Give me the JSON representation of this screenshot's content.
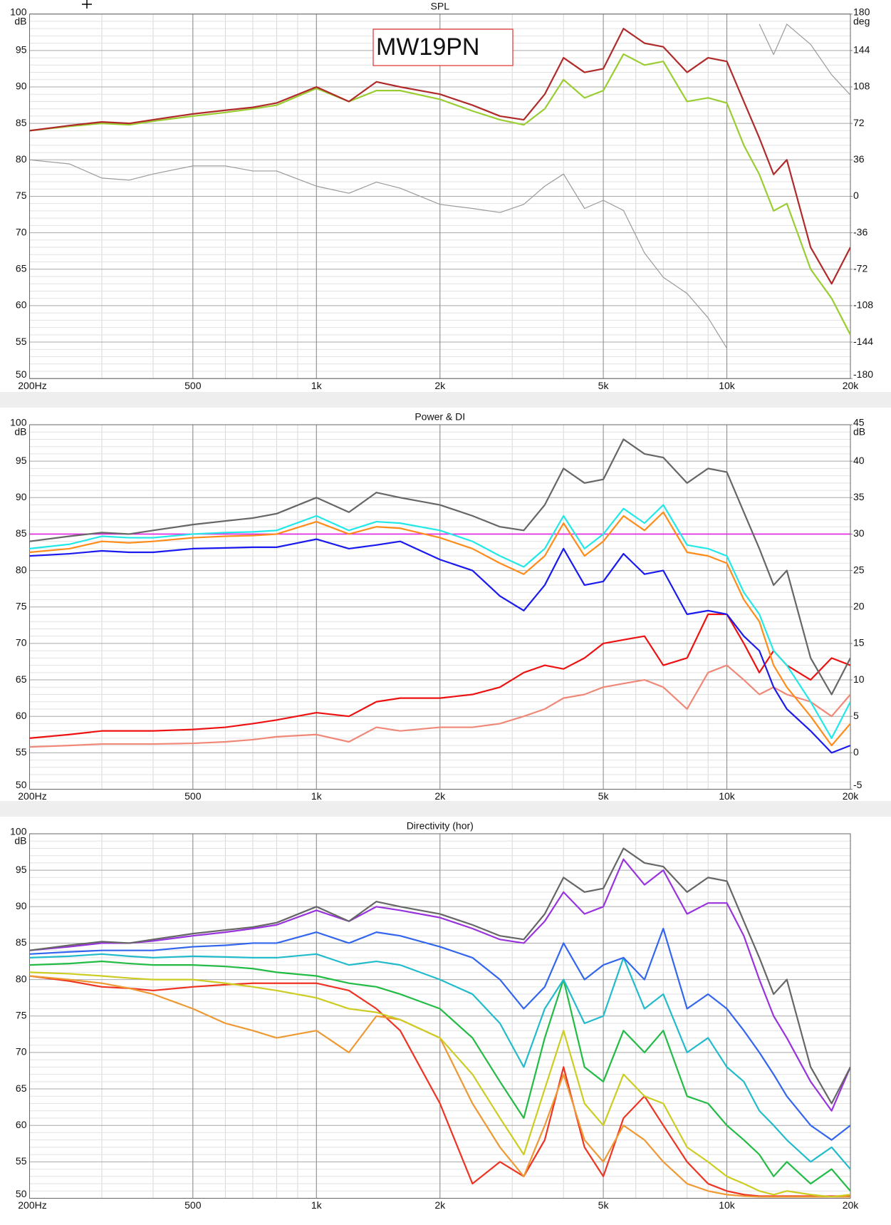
{
  "chart_data": [
    {
      "type": "line",
      "title": "SPL",
      "y_unit": "dB",
      "y2_unit": "deg",
      "annotation": "MW19PN",
      "xlog": true,
      "grid": true,
      "x": [
        200,
        250,
        300,
        350,
        400,
        500,
        600,
        700,
        800,
        1000,
        1200,
        1400,
        1600,
        2000,
        2400,
        2800,
        3200,
        3600,
        4000,
        4500,
        5000,
        5600,
        6300,
        7000,
        8000,
        9000,
        10000,
        11000,
        12000,
        13000,
        14000,
        16000,
        18000,
        20000
      ],
      "xlim": [
        200,
        20000
      ],
      "xticks": [
        {
          "value": 200,
          "label": "200Hz"
        },
        500,
        {
          "value": 1000,
          "label": "1k"
        },
        {
          "value": 2000,
          "label": "2k"
        },
        {
          "value": 5000,
          "label": "5k"
        },
        {
          "value": 10000,
          "label": "10k"
        },
        {
          "value": 20000,
          "label": "20k"
        }
      ],
      "ylim": [
        50,
        100
      ],
      "yticks": [
        100,
        95,
        90,
        85,
        80,
        75,
        70,
        65,
        60,
        55,
        50
      ],
      "y2lim": [
        -180,
        180
      ],
      "y2ticks": [
        180,
        144,
        108,
        72,
        36,
        0,
        -36,
        -72,
        -108,
        -144,
        -180
      ],
      "series": [
        {
          "color": "#9acd32",
          "values": [
            84,
            84.6,
            85,
            84.8,
            85.3,
            86,
            86.5,
            87,
            87.5,
            89.8,
            88,
            89.5,
            89.5,
            88.3,
            86.7,
            85.5,
            84.8,
            87,
            91,
            88.5,
            89.5,
            94.5,
            93,
            93.5,
            88,
            88.5,
            87.8,
            82,
            78,
            73,
            74,
            65,
            61,
            56
          ]
        },
        {
          "color": "#b02a2a",
          "values": [
            84,
            84.7,
            85.2,
            85,
            85.5,
            86.3,
            86.8,
            87.2,
            87.8,
            90,
            88,
            90.7,
            90,
            89,
            87.5,
            86,
            85.5,
            89,
            94,
            92,
            92.5,
            98,
            96,
            95.5,
            92,
            94,
            93.5,
            88,
            83,
            78,
            80,
            68,
            63,
            68
          ]
        },
        {
          "color": "#9a9a9a",
          "axis": "y2",
          "values": [
            36,
            32,
            18,
            16,
            22,
            30,
            30,
            25,
            25,
            10,
            3,
            14,
            8,
            -8,
            -12,
            -16,
            -8,
            10,
            22,
            -12,
            -4,
            -14,
            -56,
            -80,
            -96,
            -120,
            -150,
            null,
            170,
            140,
            170,
            150,
            120,
            100
          ]
        }
      ]
    },
    {
      "type": "line",
      "title": "Power & DI",
      "y_unit": "dB",
      "y2_unit": "dB",
      "xlog": true,
      "grid": true,
      "x": [
        200,
        250,
        300,
        350,
        400,
        500,
        600,
        700,
        800,
        1000,
        1200,
        1400,
        1600,
        2000,
        2400,
        2800,
        3200,
        3600,
        4000,
        4500,
        5000,
        5600,
        6300,
        7000,
        8000,
        9000,
        10000,
        11000,
        12000,
        13000,
        14000,
        16000,
        18000,
        20000
      ],
      "xlim": [
        200,
        20000
      ],
      "xticks": [
        {
          "value": 200,
          "label": "200Hz"
        },
        500,
        {
          "value": 1000,
          "label": "1k"
        },
        {
          "value": 2000,
          "label": "2k"
        },
        {
          "value": 5000,
          "label": "5k"
        },
        {
          "value": 10000,
          "label": "10k"
        },
        {
          "value": 20000,
          "label": "20k"
        }
      ],
      "ylim": [
        50,
        100
      ],
      "yticks": [
        100,
        95,
        90,
        85,
        80,
        75,
        70,
        65,
        60,
        55,
        50
      ],
      "y2lim": [
        -5,
        45
      ],
      "y2ticks": [
        45,
        40,
        35,
        30,
        25,
        20,
        15,
        10,
        5,
        0,
        -5
      ],
      "reference_line": {
        "value": 85,
        "color": "#e020e0"
      },
      "series": [
        {
          "color": "#f08878",
          "axis": "y2",
          "values": [
            0.8,
            1,
            1.2,
            1.2,
            1.2,
            1.3,
            1.5,
            1.8,
            2.2,
            2.5,
            1.5,
            3.5,
            3,
            3.5,
            3.5,
            4,
            5,
            6,
            7.5,
            8,
            9,
            9.5,
            10,
            9,
            6,
            11,
            12,
            10,
            8,
            9,
            8,
            7,
            5,
            8
          ]
        },
        {
          "color": "#ee1111",
          "axis": "y2",
          "values": [
            2,
            2.5,
            3,
            3,
            3,
            3.2,
            3.5,
            4,
            4.5,
            5.5,
            5,
            7,
            7.5,
            7.5,
            8,
            9,
            11,
            12,
            11.5,
            13,
            15,
            15.5,
            16,
            12,
            13,
            19,
            19,
            15,
            11,
            14,
            12,
            10,
            13,
            12
          ]
        },
        {
          "color": "#1a1aee",
          "values": [
            82,
            82.3,
            82.7,
            82.5,
            82.5,
            83,
            83.1,
            83.2,
            83.2,
            84.3,
            83,
            83.5,
            84,
            81.5,
            80,
            76.5,
            74.5,
            78,
            83,
            78,
            78.5,
            82.3,
            79.5,
            80,
            74,
            74.5,
            74,
            71,
            69,
            64,
            61,
            58,
            55,
            56
          ]
        },
        {
          "color": "#ff8c1a",
          "values": [
            82.5,
            83,
            84,
            83.8,
            84,
            84.5,
            84.7,
            84.8,
            85,
            86.7,
            85,
            86,
            85.8,
            84.5,
            83,
            81,
            79.5,
            82,
            86.5,
            82,
            84,
            87.5,
            85.5,
            88,
            82.5,
            82,
            81,
            76,
            73,
            67,
            64,
            60,
            56,
            59
          ]
        },
        {
          "color": "#22e8e8",
          "values": [
            83,
            83.6,
            84.7,
            84.5,
            84.5,
            85,
            85.2,
            85.3,
            85.5,
            87.5,
            85.5,
            86.7,
            86.5,
            85.5,
            84,
            82,
            80.5,
            83,
            87.5,
            83,
            85,
            88.5,
            86.5,
            89,
            83.5,
            83,
            82,
            77,
            74,
            69,
            67,
            62,
            57,
            62
          ]
        },
        {
          "color": "#666666",
          "values": [
            84,
            84.7,
            85.2,
            85,
            85.5,
            86.3,
            86.8,
            87.2,
            87.8,
            90,
            88,
            90.7,
            90,
            89,
            87.5,
            86,
            85.5,
            89,
            94,
            92,
            92.5,
            98,
            96,
            95.5,
            92,
            94,
            93.5,
            88,
            83,
            78,
            80,
            68,
            63,
            68
          ]
        }
      ]
    },
    {
      "type": "line",
      "title": "Directivity (hor)",
      "y_unit": "dB",
      "xlog": true,
      "grid": true,
      "x": [
        200,
        250,
        300,
        350,
        400,
        500,
        600,
        700,
        800,
        1000,
        1200,
        1400,
        1600,
        2000,
        2400,
        2800,
        3200,
        3600,
        4000,
        4500,
        5000,
        5600,
        6300,
        7000,
        8000,
        9000,
        10000,
        11000,
        12000,
        13000,
        14000,
        16000,
        18000,
        20000
      ],
      "xlim": [
        200,
        20000
      ],
      "xticks": [
        {
          "value": 200,
          "label": "200Hz"
        },
        500,
        {
          "value": 1000,
          "label": "1k"
        },
        {
          "value": 2000,
          "label": "2k"
        },
        {
          "value": 5000,
          "label": "5k"
        },
        {
          "value": 10000,
          "label": "10k"
        },
        {
          "value": 20000,
          "label": "20k"
        }
      ],
      "ylim": [
        50,
        100
      ],
      "yticks": [
        100,
        95,
        90,
        85,
        80,
        75,
        70,
        65,
        60,
        55,
        50
      ],
      "series": [
        {
          "color": "#ee3322",
          "values": [
            80.5,
            79.8,
            79,
            78.8,
            78.5,
            79,
            79.3,
            79.5,
            79.5,
            79.5,
            78.5,
            76,
            73,
            63,
            52,
            55,
            53,
            58,
            68,
            57,
            53,
            61,
            64,
            60,
            55,
            52,
            51,
            50.5,
            50.3,
            50.3,
            50.3,
            50.3,
            50.3,
            50.3
          ]
        },
        {
          "color": "#ee9933",
          "values": [
            80.5,
            80,
            79.5,
            78.8,
            78,
            76,
            74,
            73,
            72,
            73,
            70,
            75,
            74.5,
            72,
            63,
            57,
            53,
            60,
            67,
            58,
            55,
            60,
            58,
            55,
            52,
            51,
            50.5,
            50.3,
            50.2,
            50.2,
            50.2,
            50.2,
            50.2,
            50.2
          ]
        },
        {
          "color": "#cccc22",
          "values": [
            81,
            80.8,
            80.5,
            80.2,
            80,
            80,
            79.5,
            79,
            78.5,
            77.5,
            76,
            75.5,
            74.5,
            72,
            67,
            61,
            56,
            65,
            73,
            63,
            60,
            67,
            64,
            63,
            57,
            55,
            53,
            52,
            51,
            50.5,
            51,
            50.5,
            50.2,
            50.5
          ]
        },
        {
          "color": "#22bb44",
          "values": [
            82,
            82.2,
            82.5,
            82.2,
            82,
            82,
            81.8,
            81.5,
            81,
            80.5,
            79.5,
            79,
            78,
            76,
            72,
            66,
            61,
            72,
            80,
            68,
            66,
            73,
            70,
            73,
            64,
            63,
            60,
            58,
            56,
            53,
            55,
            52,
            54,
            51
          ]
        },
        {
          "color": "#22bbcc",
          "values": [
            83,
            83.2,
            83.5,
            83.2,
            83,
            83.2,
            83.1,
            83,
            83,
            83.5,
            82,
            82.5,
            82,
            80,
            78,
            74,
            68,
            76,
            80,
            74,
            75,
            83,
            76,
            78,
            70,
            72,
            68,
            66,
            62,
            60,
            58,
            55,
            57,
            54
          ]
        },
        {
          "color": "#3366ee",
          "values": [
            83.5,
            83.8,
            84,
            84,
            84,
            84.5,
            84.7,
            85,
            85,
            86.5,
            85,
            86.5,
            86,
            84.5,
            83,
            80,
            76,
            79,
            85,
            80,
            82,
            83,
            80,
            87,
            76,
            78,
            76,
            73,
            70,
            67,
            64,
            60,
            58,
            60
          ]
        },
        {
          "color": "#9933dd",
          "values": [
            84,
            84.5,
            85,
            85,
            85.3,
            86,
            86.5,
            87,
            87.5,
            89.5,
            88,
            90,
            89.5,
            88.5,
            87,
            85.5,
            85,
            88,
            92,
            89,
            90,
            96.5,
            93,
            95,
            89,
            90.5,
            90.5,
            86,
            80,
            75,
            72,
            66,
            62,
            68
          ]
        },
        {
          "color": "#666666",
          "values": [
            84,
            84.7,
            85.2,
            85,
            85.5,
            86.3,
            86.8,
            87.2,
            87.8,
            90,
            88,
            90.7,
            90,
            89,
            87.5,
            86,
            85.5,
            89,
            94,
            92,
            92.5,
            98,
            96,
            95.5,
            92,
            94,
            93.5,
            88,
            83,
            78,
            80,
            68,
            63,
            68
          ]
        }
      ]
    }
  ]
}
